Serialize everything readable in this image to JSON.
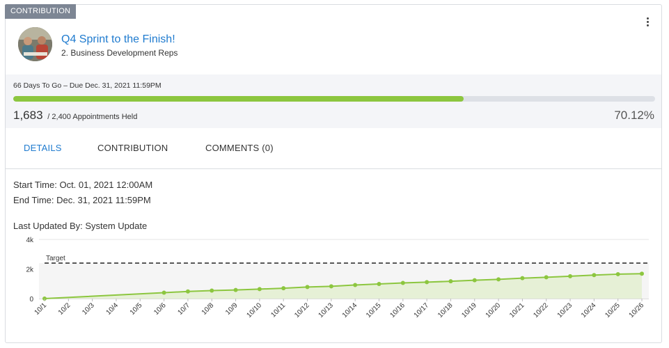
{
  "card": {
    "tag": "CONTRIBUTION",
    "title": "Q4 Sprint to the Finish!",
    "subtitle": "2. Business Development Reps",
    "menu_icon": "kebab-menu-icon"
  },
  "progress": {
    "due_text": "66 Days To Go – Due Dec. 31, 2021 11:59PM",
    "current": "1,683",
    "goal_text": "/ 2,400 Appointments Held",
    "percent_text": "70.12%",
    "fraction": 0.7012,
    "bar_color": "#8cc63f"
  },
  "tabs": [
    {
      "label": "DETAILS",
      "active": true
    },
    {
      "label": "CONTRIBUTION",
      "active": false
    },
    {
      "label": "COMMENTS (0)",
      "active": false
    }
  ],
  "details": {
    "start_time": "Start Time: Oct. 01, 2021 12:00AM",
    "end_time": "End Time: Dec. 31, 2021 11:59PM",
    "last_updated": "Last Updated By: System Update"
  },
  "chart_data": {
    "type": "area",
    "categories": [
      "10/1",
      "10/2",
      "10/3",
      "10/4",
      "10/5",
      "10/6",
      "10/7",
      "10/8",
      "10/9",
      "10/10",
      "10/11",
      "10/12",
      "10/13",
      "10/14",
      "10/15",
      "10/16",
      "10/17",
      "10/18",
      "10/19",
      "10/20",
      "10/21",
      "10/22",
      "10/23",
      "10/24",
      "10/25",
      "10/26"
    ],
    "points": [
      {
        "x": "10/1",
        "y": 0
      },
      {
        "x": "10/6",
        "y": 400
      },
      {
        "x": "10/7",
        "y": 480
      },
      {
        "x": "10/8",
        "y": 540
      },
      {
        "x": "10/9",
        "y": 580
      },
      {
        "x": "10/10",
        "y": 640
      },
      {
        "x": "10/11",
        "y": 700
      },
      {
        "x": "10/12",
        "y": 780
      },
      {
        "x": "10/13",
        "y": 830
      },
      {
        "x": "10/14",
        "y": 920
      },
      {
        "x": "10/15",
        "y": 990
      },
      {
        "x": "10/16",
        "y": 1060
      },
      {
        "x": "10/17",
        "y": 1110
      },
      {
        "x": "10/18",
        "y": 1170
      },
      {
        "x": "10/19",
        "y": 1240
      },
      {
        "x": "10/20",
        "y": 1300
      },
      {
        "x": "10/21",
        "y": 1380
      },
      {
        "x": "10/22",
        "y": 1440
      },
      {
        "x": "10/23",
        "y": 1510
      },
      {
        "x": "10/24",
        "y": 1590
      },
      {
        "x": "10/25",
        "y": 1650
      },
      {
        "x": "10/26",
        "y": 1683
      }
    ],
    "target": 2400,
    "target_label": "Target",
    "yticks": [
      0,
      2000,
      4000
    ],
    "ytick_labels": [
      "0",
      "2k",
      "4k"
    ],
    "ylim": [
      0,
      4000
    ],
    "line_color": "#8cc63f",
    "fill_color": "#e6f0d6",
    "grid": true
  }
}
